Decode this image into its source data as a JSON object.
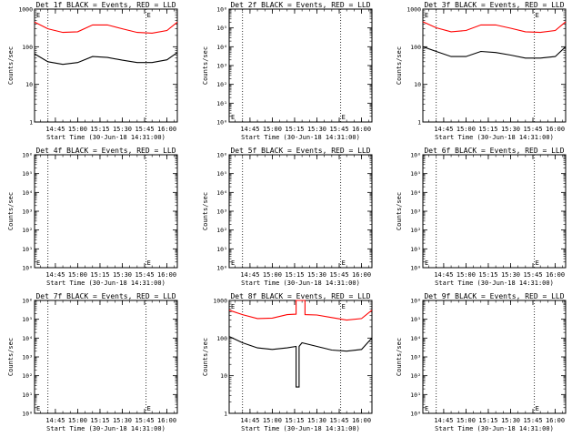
{
  "chart_data": [
    {
      "type": "line",
      "title": "Det 1f BLACK = Events, RED = LLD",
      "xlabel": "Start Time (30-Jun-18 14:31:00)",
      "ylabel": "Counts/sec",
      "yscale": "log",
      "ylim": [
        1,
        1000
      ],
      "xlim": [
        "14:31",
        "16:07"
      ],
      "yticks": [
        "1000",
        "100",
        "10",
        "1"
      ],
      "xticks": [
        "14:45",
        "15:00",
        "15:15",
        "15:30",
        "15:45",
        "16:00"
      ],
      "markers": [
        "14:40",
        "15:46",
        "16:07"
      ],
      "letter": "E",
      "series": [
        {
          "name": "BLACK = Events",
          "color": "#000000",
          "x": [
            "14:31",
            "14:40",
            "14:50",
            "15:00",
            "15:10",
            "15:20",
            "15:30",
            "15:40",
            "15:50",
            "16:00",
            "16:07"
          ],
          "y": [
            65,
            40,
            34,
            38,
            55,
            52,
            44,
            38,
            38,
            45,
            70
          ]
        },
        {
          "name": "RED = LLD",
          "color": "#ff0000",
          "x": [
            "14:31",
            "14:40",
            "14:50",
            "15:00",
            "15:10",
            "15:20",
            "15:30",
            "15:40",
            "15:50",
            "16:00",
            "16:07"
          ],
          "y": [
            450,
            300,
            240,
            250,
            380,
            380,
            300,
            240,
            230,
            270,
            450
          ]
        }
      ]
    },
    {
      "type": "line",
      "title": "Det 2f BLACK = Events, RED = LLD",
      "xlabel": "Start Time (30-Jun-18 14:31:00)",
      "ylabel": "Counts/sec",
      "yscale": "log",
      "ylim": [
        1,
        1000000
      ],
      "yticks": [
        "10⁶",
        "10⁵",
        "10⁴",
        "10³",
        "10²",
        "10¹",
        "10⁰"
      ],
      "xticks": [
        "14:45",
        "15:00",
        "15:15",
        "15:30",
        "15:45",
        "16:00"
      ],
      "markers": [
        "14:40",
        "15:46",
        "16:07"
      ],
      "letter": "E",
      "series": []
    },
    {
      "type": "line",
      "title": "Det 3f BLACK = Events, RED = LLD",
      "xlabel": "Start Time (30-Jun-18 14:31:00)",
      "ylabel": "Counts/sec",
      "yscale": "log",
      "ylim": [
        1,
        1000
      ],
      "yticks": [
        "1000",
        "100",
        "10",
        "1"
      ],
      "xticks": [
        "14:45",
        "15:00",
        "15:15",
        "15:30",
        "15:45",
        "16:00"
      ],
      "markers": [
        "14:40",
        "15:46",
        "16:07"
      ],
      "letter": "E",
      "series": [
        {
          "name": "BLACK = Events",
          "color": "#000000",
          "x": [
            "14:31",
            "14:40",
            "14:50",
            "15:00",
            "15:10",
            "15:20",
            "15:30",
            "15:40",
            "15:50",
            "16:00",
            "16:07"
          ],
          "y": [
            100,
            75,
            55,
            55,
            75,
            70,
            60,
            50,
            50,
            55,
            100
          ]
        },
        {
          "name": "RED = LLD",
          "color": "#ff0000",
          "x": [
            "14:31",
            "14:40",
            "14:50",
            "15:00",
            "15:10",
            "15:20",
            "15:30",
            "15:40",
            "15:50",
            "16:00",
            "16:07"
          ],
          "y": [
            460,
            320,
            250,
            270,
            380,
            380,
            310,
            250,
            240,
            270,
            460
          ]
        }
      ]
    },
    {
      "type": "line",
      "title": "Det 4f BLACK = Events, RED = LLD",
      "xlabel": "Start Time (30-Jun-18 14:31:00)",
      "ylabel": "Counts/sec",
      "yscale": "log",
      "ylim": [
        1,
        1000000
      ],
      "yticks": [
        "10⁶",
        "10⁵",
        "10⁴",
        "10³",
        "10²",
        "10¹",
        "10⁰"
      ],
      "xticks": [
        "14:45",
        "15:00",
        "15:15",
        "15:30",
        "15:45",
        "16:00"
      ],
      "markers": [
        "14:40",
        "15:46",
        "16:07"
      ],
      "letter": "E",
      "series": []
    },
    {
      "type": "line",
      "title": "Det 5f BLACK = Events, RED = LLD",
      "xlabel": "Start Time (30-Jun-18 14:31:00)",
      "ylabel": "Counts/sec",
      "yscale": "log",
      "ylim": [
        1,
        1000000
      ],
      "yticks": [
        "10⁶",
        "10⁵",
        "10⁴",
        "10³",
        "10²",
        "10¹",
        "10⁰"
      ],
      "xticks": [
        "14:45",
        "15:00",
        "15:15",
        "15:30",
        "15:45",
        "16:00"
      ],
      "markers": [
        "14:40",
        "15:46",
        "16:07"
      ],
      "letter": "E",
      "series": []
    },
    {
      "type": "line",
      "title": "Det 6f BLACK = Events, RED = LLD",
      "xlabel": "Start Time (30-Jun-18 14:31:00)",
      "ylabel": "Counts/sec",
      "yscale": "log",
      "ylim": [
        1,
        1000000
      ],
      "yticks": [
        "10⁶",
        "10⁵",
        "10⁴",
        "10³",
        "10²",
        "10¹",
        "10⁰"
      ],
      "xticks": [
        "14:45",
        "15:00",
        "15:15",
        "15:30",
        "15:45",
        "16:00"
      ],
      "markers": [
        "14:40",
        "15:46",
        "16:07"
      ],
      "letter": "E",
      "series": []
    },
    {
      "type": "line",
      "title": "Det 7f BLACK = Events, RED = LLD",
      "xlabel": "Start Time (30-Jun-18 14:31:00)",
      "ylabel": "Counts/sec",
      "yscale": "log",
      "ylim": [
        1,
        1000000
      ],
      "yticks": [
        "10⁶",
        "10⁵",
        "10⁴",
        "10³",
        "10²",
        "10¹",
        "10⁰"
      ],
      "xticks": [
        "14:45",
        "15:00",
        "15:15",
        "15:30",
        "15:45",
        "16:00"
      ],
      "markers": [
        "14:40",
        "15:46",
        "16:07"
      ],
      "letter": "E",
      "series": []
    },
    {
      "type": "line",
      "title": "Det 8f BLACK = Events, RED = LLD",
      "xlabel": "Start Time (30-Jun-18 14:31:00)",
      "ylabel": "Counts/sec",
      "yscale": "log",
      "ylim": [
        1,
        1000
      ],
      "yticks": [
        "1000",
        "100",
        "10",
        "1"
      ],
      "xticks": [
        "14:45",
        "15:00",
        "15:15",
        "15:30",
        "15:45",
        "16:00"
      ],
      "markers": [
        "14:40",
        "15:46",
        "16:07"
      ],
      "letter": "E",
      "series": [
        {
          "name": "BLACK = Events",
          "color": "#000000",
          "x": [
            "14:31",
            "14:40",
            "14:50",
            "15:00",
            "15:10",
            "15:16",
            "15:16",
            "15:18",
            "15:18",
            "15:20",
            "15:30",
            "15:40",
            "15:50",
            "16:00",
            "16:07"
          ],
          "y": [
            110,
            75,
            55,
            50,
            55,
            60,
            5,
            5,
            60,
            75,
            60,
            48,
            45,
            50,
            100
          ]
        },
        {
          "name": "RED = LLD",
          "color": "#ff0000",
          "x": [
            "14:31",
            "14:40",
            "14:50",
            "15:00",
            "15:10",
            "15:16",
            "15:16",
            "15:22",
            "15:22",
            "15:30",
            "15:40",
            "15:50",
            "16:00",
            "16:07"
          ],
          "y": [
            550,
            420,
            330,
            340,
            420,
            430,
            1000,
            1000,
            420,
            410,
            350,
            300,
            330,
            550
          ]
        }
      ]
    },
    {
      "type": "line",
      "title": "Det 9f BLACK = Events, RED = LLD",
      "xlabel": "Start Time (30-Jun-18 14:31:00)",
      "ylabel": "Counts/sec",
      "yscale": "log",
      "ylim": [
        1,
        1000000
      ],
      "yticks": [
        "10⁶",
        "10⁵",
        "10⁴",
        "10³",
        "10²",
        "10¹",
        "10⁰"
      ],
      "xticks": [
        "14:45",
        "15:00",
        "15:15",
        "15:30",
        "15:45",
        "16:00"
      ],
      "markers": [
        "14:40",
        "15:46",
        "16:07"
      ],
      "letter": "E",
      "series": []
    }
  ]
}
